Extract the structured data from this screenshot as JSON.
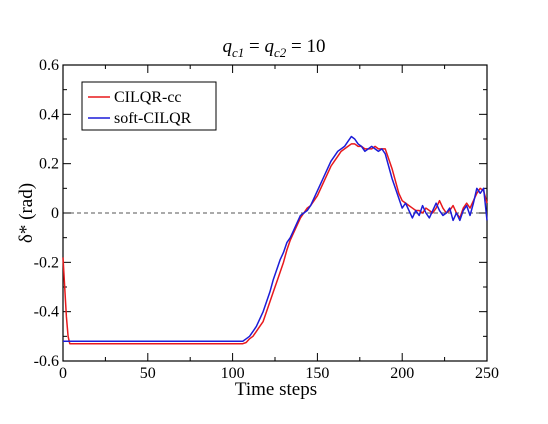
{
  "chart_data": {
    "type": "line",
    "title": "q_c1 = q_c2 = 10",
    "title_parts": {
      "q": "q",
      "c1": "c1",
      "c2": "c2",
      "eq": "=",
      "value": "10"
    },
    "xlabel": "Time steps",
    "ylabel": "δ* (rad)",
    "xlim": [
      0,
      250
    ],
    "ylim": [
      -0.6,
      0.6
    ],
    "x_ticks": [
      0,
      50,
      100,
      150,
      200,
      250
    ],
    "y_ticks": [
      -0.6,
      -0.4,
      -0.2,
      0,
      0.2,
      0.4,
      0.6
    ],
    "x_tick_labels": [
      "0",
      "50",
      "100",
      "150",
      "200",
      "250"
    ],
    "y_tick_labels": [
      "-0.6",
      "-0.4",
      "-0.2",
      "0",
      "0.2",
      "0.4",
      "0.6"
    ],
    "reference_line": {
      "y": 0,
      "style": "dashed",
      "color": "#555555"
    },
    "legend": {
      "placement": "top-left"
    },
    "grid": false,
    "series": [
      {
        "name": "CILQR-cc",
        "color": "#e8191c",
        "points": [
          [
            0,
            -0.18
          ],
          [
            1,
            -0.3
          ],
          [
            2,
            -0.42
          ],
          [
            3,
            -0.5
          ],
          [
            4,
            -0.53
          ],
          [
            5,
            -0.53
          ],
          [
            20,
            -0.53
          ],
          [
            50,
            -0.53
          ],
          [
            80,
            -0.53
          ],
          [
            100,
            -0.53
          ],
          [
            106,
            -0.53
          ],
          [
            108,
            -0.525
          ],
          [
            110,
            -0.51
          ],
          [
            112,
            -0.5
          ],
          [
            114,
            -0.48
          ],
          [
            116,
            -0.46
          ],
          [
            118,
            -0.44
          ],
          [
            120,
            -0.4
          ],
          [
            122,
            -0.36
          ],
          [
            124,
            -0.32
          ],
          [
            126,
            -0.28
          ],
          [
            128,
            -0.24
          ],
          [
            130,
            -0.2
          ],
          [
            132,
            -0.15
          ],
          [
            134,
            -0.11
          ],
          [
            136,
            -0.08
          ],
          [
            138,
            -0.05
          ],
          [
            140,
            -0.02
          ],
          [
            142,
            0.0
          ],
          [
            144,
            0.02
          ],
          [
            146,
            0.03
          ],
          [
            148,
            0.05
          ],
          [
            150,
            0.07
          ],
          [
            152,
            0.1
          ],
          [
            154,
            0.13
          ],
          [
            156,
            0.16
          ],
          [
            158,
            0.19
          ],
          [
            160,
            0.21
          ],
          [
            162,
            0.23
          ],
          [
            164,
            0.25
          ],
          [
            166,
            0.26
          ],
          [
            168,
            0.27
          ],
          [
            170,
            0.28
          ],
          [
            172,
            0.28
          ],
          [
            174,
            0.27
          ],
          [
            176,
            0.27
          ],
          [
            178,
            0.26
          ],
          [
            180,
            0.26
          ],
          [
            182,
            0.26
          ],
          [
            184,
            0.27
          ],
          [
            186,
            0.26
          ],
          [
            188,
            0.26
          ],
          [
            190,
            0.26
          ],
          [
            192,
            0.22
          ],
          [
            194,
            0.18
          ],
          [
            196,
            0.13
          ],
          [
            198,
            0.08
          ],
          [
            200,
            0.05
          ],
          [
            202,
            0.04
          ],
          [
            204,
            0.03
          ],
          [
            206,
            0.02
          ],
          [
            208,
            0.01
          ],
          [
            210,
            0.01
          ],
          [
            212,
            0.0
          ],
          [
            214,
            0.02
          ],
          [
            216,
            0.01
          ],
          [
            218,
            0.0
          ],
          [
            220,
            0.02
          ],
          [
            222,
            0.05
          ],
          [
            224,
            0.02
          ],
          [
            226,
            0.0
          ],
          [
            228,
            0.01
          ],
          [
            230,
            0.03
          ],
          [
            232,
            0.0
          ],
          [
            234,
            -0.02
          ],
          [
            236,
            0.02
          ],
          [
            238,
            0.04
          ],
          [
            240,
            0.02
          ],
          [
            242,
            0.05
          ],
          [
            244,
            0.08
          ],
          [
            246,
            0.1
          ],
          [
            248,
            0.09
          ],
          [
            250,
            0.04
          ]
        ]
      },
      {
        "name": "soft-CILQR",
        "color": "#1c1cd8",
        "points": [
          [
            0,
            -0.52
          ],
          [
            5,
            -0.52
          ],
          [
            20,
            -0.52
          ],
          [
            50,
            -0.52
          ],
          [
            80,
            -0.52
          ],
          [
            100,
            -0.52
          ],
          [
            106,
            -0.52
          ],
          [
            108,
            -0.51
          ],
          [
            110,
            -0.5
          ],
          [
            112,
            -0.48
          ],
          [
            114,
            -0.46
          ],
          [
            116,
            -0.43
          ],
          [
            118,
            -0.4
          ],
          [
            120,
            -0.36
          ],
          [
            122,
            -0.32
          ],
          [
            124,
            -0.27
          ],
          [
            126,
            -0.23
          ],
          [
            128,
            -0.19
          ],
          [
            130,
            -0.16
          ],
          [
            132,
            -0.12
          ],
          [
            134,
            -0.1
          ],
          [
            136,
            -0.07
          ],
          [
            138,
            -0.04
          ],
          [
            140,
            -0.01
          ],
          [
            142,
            0.0
          ],
          [
            144,
            0.01
          ],
          [
            146,
            0.03
          ],
          [
            148,
            0.06
          ],
          [
            150,
            0.09
          ],
          [
            152,
            0.12
          ],
          [
            154,
            0.15
          ],
          [
            156,
            0.18
          ],
          [
            158,
            0.21
          ],
          [
            160,
            0.23
          ],
          [
            162,
            0.25
          ],
          [
            164,
            0.26
          ],
          [
            166,
            0.27
          ],
          [
            168,
            0.29
          ],
          [
            170,
            0.31
          ],
          [
            172,
            0.3
          ],
          [
            174,
            0.28
          ],
          [
            176,
            0.27
          ],
          [
            178,
            0.25
          ],
          [
            180,
            0.26
          ],
          [
            182,
            0.27
          ],
          [
            184,
            0.26
          ],
          [
            186,
            0.25
          ],
          [
            188,
            0.26
          ],
          [
            190,
            0.24
          ],
          [
            192,
            0.19
          ],
          [
            194,
            0.14
          ],
          [
            196,
            0.1
          ],
          [
            198,
            0.06
          ],
          [
            200,
            0.02
          ],
          [
            202,
            0.04
          ],
          [
            204,
            0.01
          ],
          [
            206,
            -0.02
          ],
          [
            208,
            0.01
          ],
          [
            210,
            -0.01
          ],
          [
            212,
            0.03
          ],
          [
            214,
            0.0
          ],
          [
            216,
            -0.02
          ],
          [
            218,
            0.01
          ],
          [
            220,
            0.04
          ],
          [
            222,
            0.01
          ],
          [
            224,
            -0.01
          ],
          [
            226,
            0.0
          ],
          [
            228,
            0.02
          ],
          [
            230,
            -0.03
          ],
          [
            232,
            0.0
          ],
          [
            234,
            -0.03
          ],
          [
            236,
            0.01
          ],
          [
            238,
            0.03
          ],
          [
            240,
            -0.01
          ],
          [
            242,
            0.04
          ],
          [
            244,
            0.1
          ],
          [
            246,
            0.08
          ],
          [
            248,
            0.1
          ],
          [
            250,
            -0.03
          ]
        ]
      }
    ]
  }
}
